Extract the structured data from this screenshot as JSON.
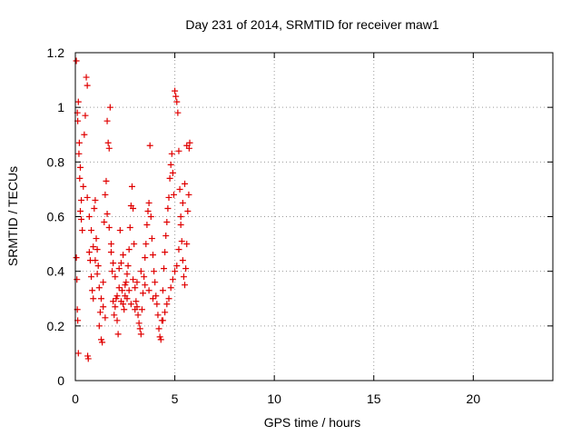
{
  "chart_data": {
    "type": "scatter",
    "title": "Day 231 of 2014, SRMTID for receiver maw1",
    "xlabel": "GPS time / hours",
    "ylabel": "SRMTID / TECUs",
    "xlim": [
      0,
      24
    ],
    "ylim": [
      0,
      1.2
    ],
    "x_ticks": [
      0,
      5,
      10,
      15,
      20
    ],
    "y_ticks": [
      0,
      0.2,
      0.4,
      0.6,
      0.8,
      1,
      1.2
    ],
    "grid": true,
    "marker": "+",
    "series": [
      {
        "name": "maw1",
        "color": "#e00000",
        "points": [
          [
            0.05,
            1.17
          ],
          [
            0.1,
            0.98
          ],
          [
            0.12,
            0.95
          ],
          [
            0.15,
            1.02
          ],
          [
            0.2,
            0.87
          ],
          [
            0.22,
            0.74
          ],
          [
            0.25,
            0.62
          ],
          [
            0.3,
            0.66
          ],
          [
            0.05,
            0.45
          ],
          [
            0.08,
            0.37
          ],
          [
            0.1,
            0.26
          ],
          [
            0.12,
            0.22
          ],
          [
            0.15,
            0.1
          ],
          [
            0.18,
            0.83
          ],
          [
            0.25,
            0.78
          ],
          [
            0.3,
            0.59
          ],
          [
            0.35,
            0.55
          ],
          [
            0.4,
            0.71
          ],
          [
            0.45,
            0.9
          ],
          [
            0.5,
            0.97
          ],
          [
            0.55,
            1.11
          ],
          [
            0.6,
            1.08
          ],
          [
            0.62,
            0.09
          ],
          [
            0.65,
            0.08
          ],
          [
            0.7,
            0.47
          ],
          [
            0.75,
            0.44
          ],
          [
            0.8,
            0.38
          ],
          [
            0.85,
            0.33
          ],
          [
            0.9,
            0.3
          ],
          [
            0.95,
            0.63
          ],
          [
            1.0,
            0.66
          ],
          [
            1.05,
            0.52
          ],
          [
            1.1,
            0.48
          ],
          [
            1.15,
            0.42
          ],
          [
            1.2,
            0.2
          ],
          [
            1.25,
            0.25
          ],
          [
            1.3,
            0.15
          ],
          [
            1.35,
            0.14
          ],
          [
            1.4,
            0.36
          ],
          [
            1.45,
            0.58
          ],
          [
            1.5,
            0.68
          ],
          [
            1.55,
            0.73
          ],
          [
            1.6,
            0.95
          ],
          [
            1.65,
            0.87
          ],
          [
            1.7,
            0.85
          ],
          [
            1.75,
            1.0
          ],
          [
            1.8,
            0.5
          ],
          [
            1.85,
            0.4
          ],
          [
            1.9,
            0.29
          ],
          [
            1.95,
            0.24
          ],
          [
            2.0,
            0.27
          ],
          [
            2.05,
            0.3
          ],
          [
            2.1,
            0.22
          ],
          [
            2.15,
            0.17
          ],
          [
            2.2,
            0.34
          ],
          [
            2.25,
            0.55
          ],
          [
            2.3,
            0.43
          ],
          [
            2.35,
            0.33
          ],
          [
            2.4,
            0.28
          ],
          [
            2.45,
            0.26
          ],
          [
            2.5,
            0.31
          ],
          [
            2.55,
            0.36
          ],
          [
            2.6,
            0.39
          ],
          [
            2.65,
            0.42
          ],
          [
            2.7,
            0.48
          ],
          [
            2.75,
            0.56
          ],
          [
            2.8,
            0.64
          ],
          [
            2.85,
            0.71
          ],
          [
            2.9,
            0.63
          ],
          [
            2.95,
            0.5
          ],
          [
            3.0,
            0.34
          ],
          [
            3.05,
            0.29
          ],
          [
            3.1,
            0.27
          ],
          [
            3.15,
            0.24
          ],
          [
            3.2,
            0.21
          ],
          [
            3.25,
            0.19
          ],
          [
            3.3,
            0.17
          ],
          [
            3.35,
            0.26
          ],
          [
            3.4,
            0.32
          ],
          [
            3.45,
            0.38
          ],
          [
            3.5,
            0.45
          ],
          [
            3.55,
            0.5
          ],
          [
            3.6,
            0.57
          ],
          [
            3.65,
            0.62
          ],
          [
            3.7,
            0.65
          ],
          [
            3.75,
            0.86
          ],
          [
            3.8,
            0.6
          ],
          [
            3.85,
            0.52
          ],
          [
            3.9,
            0.46
          ],
          [
            3.95,
            0.4
          ],
          [
            4.0,
            0.36
          ],
          [
            4.05,
            0.31
          ],
          [
            4.1,
            0.28
          ],
          [
            4.15,
            0.24
          ],
          [
            4.2,
            0.19
          ],
          [
            4.25,
            0.16
          ],
          [
            4.3,
            0.15
          ],
          [
            4.35,
            0.22
          ],
          [
            4.4,
            0.33
          ],
          [
            4.45,
            0.41
          ],
          [
            4.5,
            0.47
          ],
          [
            4.55,
            0.53
          ],
          [
            4.6,
            0.58
          ],
          [
            4.65,
            0.63
          ],
          [
            4.7,
            0.67
          ],
          [
            4.75,
            0.74
          ],
          [
            4.8,
            0.79
          ],
          [
            4.85,
            0.83
          ],
          [
            4.9,
            0.76
          ],
          [
            4.95,
            0.68
          ],
          [
            5.0,
            1.06
          ],
          [
            5.05,
            1.04
          ],
          [
            5.1,
            1.02
          ],
          [
            5.15,
            0.98
          ],
          [
            5.2,
            0.84
          ],
          [
            5.25,
            0.7
          ],
          [
            5.3,
            0.6
          ],
          [
            5.35,
            0.51
          ],
          [
            5.4,
            0.44
          ],
          [
            5.45,
            0.38
          ],
          [
            5.5,
            0.35
          ],
          [
            5.55,
            0.41
          ],
          [
            5.6,
            0.5
          ],
          [
            5.65,
            0.62
          ],
          [
            5.7,
            0.68
          ],
          [
            5.72,
            0.85
          ],
          [
            5.75,
            0.87
          ],
          [
            5.6,
            0.86
          ],
          [
            5.5,
            0.72
          ],
          [
            5.4,
            0.65
          ],
          [
            5.3,
            0.57
          ],
          [
            5.2,
            0.48
          ],
          [
            5.1,
            0.42
          ],
          [
            5.0,
            0.4
          ],
          [
            4.9,
            0.37
          ],
          [
            4.8,
            0.34
          ],
          [
            4.7,
            0.3
          ],
          [
            4.6,
            0.28
          ],
          [
            4.5,
            0.25
          ],
          [
            4.4,
            0.22
          ],
          [
            0.6,
            0.67
          ],
          [
            0.7,
            0.6
          ],
          [
            0.8,
            0.55
          ],
          [
            0.9,
            0.49
          ],
          [
            1.0,
            0.44
          ],
          [
            1.1,
            0.39
          ],
          [
            1.2,
            0.34
          ],
          [
            1.3,
            0.3
          ],
          [
            1.4,
            0.27
          ],
          [
            1.5,
            0.23
          ],
          [
            2.1,
            0.31
          ],
          [
            2.3,
            0.29
          ],
          [
            2.5,
            0.35
          ],
          [
            2.7,
            0.33
          ],
          [
            2.9,
            0.37
          ],
          [
            3.1,
            0.36
          ],
          [
            3.3,
            0.4
          ],
          [
            3.5,
            0.35
          ],
          [
            3.7,
            0.33
          ],
          [
            3.9,
            0.3
          ],
          [
            1.6,
            0.61
          ],
          [
            1.7,
            0.56
          ],
          [
            1.8,
            0.47
          ],
          [
            1.9,
            0.43
          ],
          [
            2.0,
            0.38
          ],
          [
            2.2,
            0.41
          ],
          [
            2.4,
            0.46
          ],
          [
            2.6,
            0.3
          ],
          [
            2.8,
            0.28
          ],
          [
            3.0,
            0.26
          ]
        ]
      }
    ]
  }
}
